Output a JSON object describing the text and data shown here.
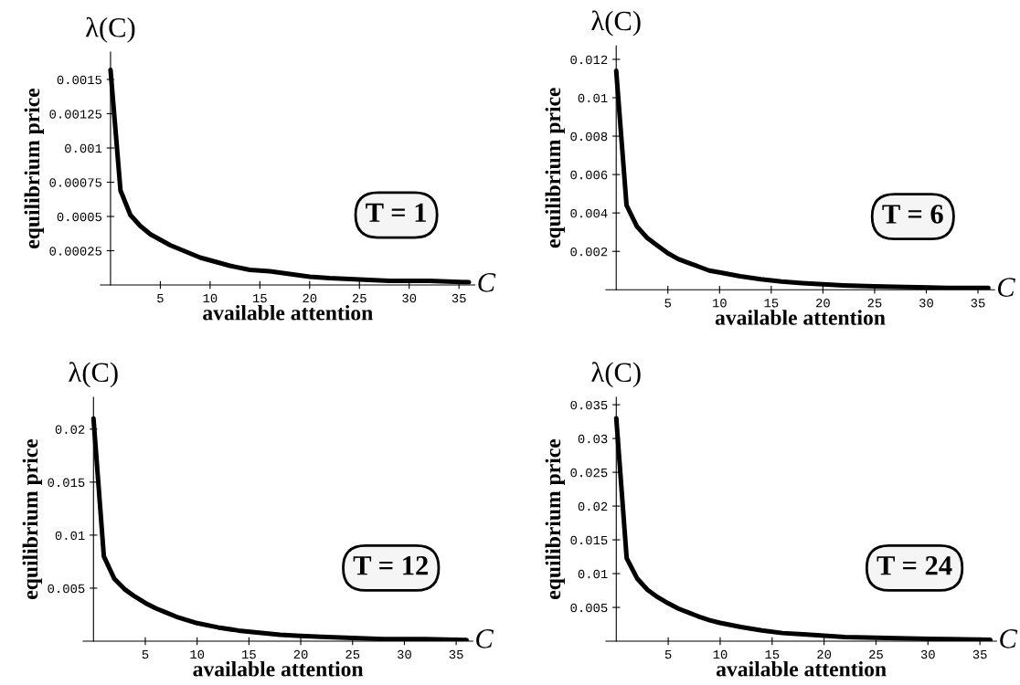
{
  "chart_data": [
    {
      "type": "line",
      "xlabel": "available attention",
      "ylabel": "equilibrium price",
      "annotations": [
        "λ(C)",
        "C",
        "T = 1"
      ],
      "x": [
        0,
        1,
        2,
        3,
        4,
        5,
        6,
        7,
        8,
        9,
        10,
        12,
        14,
        16,
        18,
        20,
        22,
        25,
        28,
        32,
        36
      ],
      "series": [
        {
          "color": "#000000",
          "values": [
            0.00157,
            0.00069,
            0.00051,
            0.00043,
            0.00037,
            0.00033,
            0.00029,
            0.00026,
            0.00023,
            0.0002,
            0.00018,
            0.00014,
            0.00011,
            0.0001,
            8e-05,
            6e-05,
            5e-05,
            4e-05,
            3e-05,
            3e-05,
            2e-05
          ]
        }
      ],
      "xlim": [
        -1,
        36.6
      ],
      "ylim": [
        0,
        0.0017
      ],
      "xticks": [
        5,
        10,
        15,
        20,
        25,
        30,
        35
      ],
      "yticks": [
        0.00025,
        0.0005,
        0.00075,
        0.001,
        0.00125,
        0.0015
      ],
      "grid": false,
      "line_style": "solid",
      "marker": "none"
    },
    {
      "type": "line",
      "xlabel": "available attention",
      "ylabel": "equilibrium price",
      "annotations": [
        "λ(C)",
        "C",
        "T = 6"
      ],
      "x": [
        0,
        1,
        2,
        3,
        4,
        5,
        6,
        7,
        8,
        9,
        10,
        12,
        14,
        16,
        18,
        20,
        22,
        25,
        28,
        32,
        36
      ],
      "series": [
        {
          "color": "#000000",
          "values": [
            0.0114,
            0.0044,
            0.0033,
            0.0027,
            0.0023,
            0.0019,
            0.0016,
            0.0014,
            0.0012,
            0.001,
            0.0009,
            0.0007,
            0.00055,
            0.00043,
            0.00035,
            0.00028,
            0.00023,
            0.00018,
            0.00014,
            0.0001,
            0.0001
          ]
        }
      ],
      "xlim": [
        -1,
        36.6
      ],
      "ylim": [
        0,
        0.0127
      ],
      "xticks": [
        5,
        10,
        15,
        20,
        25,
        30,
        35
      ],
      "yticks": [
        0.002,
        0.004,
        0.006,
        0.008,
        0.01,
        0.012
      ],
      "grid": false,
      "line_style": "solid",
      "marker": "none"
    },
    {
      "type": "line",
      "xlabel": "available attention",
      "ylabel": "equilibrium price",
      "annotations": [
        "λ(C)",
        "C",
        "T = 12"
      ],
      "x": [
        0,
        1,
        2,
        3,
        4,
        5,
        6,
        7,
        8,
        9,
        10,
        12,
        14,
        16,
        18,
        20,
        22,
        25,
        28,
        32,
        36
      ],
      "series": [
        {
          "color": "#000000",
          "values": [
            0.021,
            0.008,
            0.0059,
            0.0049,
            0.0042,
            0.0036,
            0.0031,
            0.0027,
            0.0023,
            0.002,
            0.0017,
            0.0013,
            0.001,
            0.0008,
            0.0006,
            0.0005,
            0.0004,
            0.0003,
            0.0002,
            0.0002,
            0.0001
          ]
        }
      ],
      "xlim": [
        -1,
        36.6
      ],
      "ylim": [
        0,
        0.023
      ],
      "xticks": [
        5,
        10,
        15,
        20,
        25,
        30,
        35
      ],
      "yticks": [
        0.005,
        0.01,
        0.015,
        0.02
      ],
      "grid": false,
      "line_style": "solid",
      "marker": "none"
    },
    {
      "type": "line",
      "xlabel": "available attention",
      "ylabel": "equilibrium price",
      "annotations": [
        "λ(C)",
        "C",
        "T = 24"
      ],
      "x": [
        0,
        1,
        2,
        3,
        4,
        5,
        6,
        7,
        8,
        9,
        10,
        12,
        14,
        16,
        18,
        20,
        22,
        25,
        28,
        32,
        36
      ],
      "series": [
        {
          "color": "#000000",
          "values": [
            0.033,
            0.0123,
            0.0093,
            0.0076,
            0.0065,
            0.0056,
            0.0048,
            0.0042,
            0.0036,
            0.0031,
            0.0027,
            0.0021,
            0.0016,
            0.0012,
            0.001,
            0.0008,
            0.0006,
            0.0005,
            0.0004,
            0.0003,
            0.0002
          ]
        }
      ],
      "xlim": [
        -1,
        36.6
      ],
      "ylim": [
        0,
        0.0361
      ],
      "xticks": [
        5,
        10,
        15,
        20,
        25,
        30,
        35
      ],
      "yticks": [
        0.005,
        0.01,
        0.015,
        0.02,
        0.025,
        0.03,
        0.035
      ],
      "grid": false,
      "line_style": "solid",
      "marker": "none"
    }
  ]
}
